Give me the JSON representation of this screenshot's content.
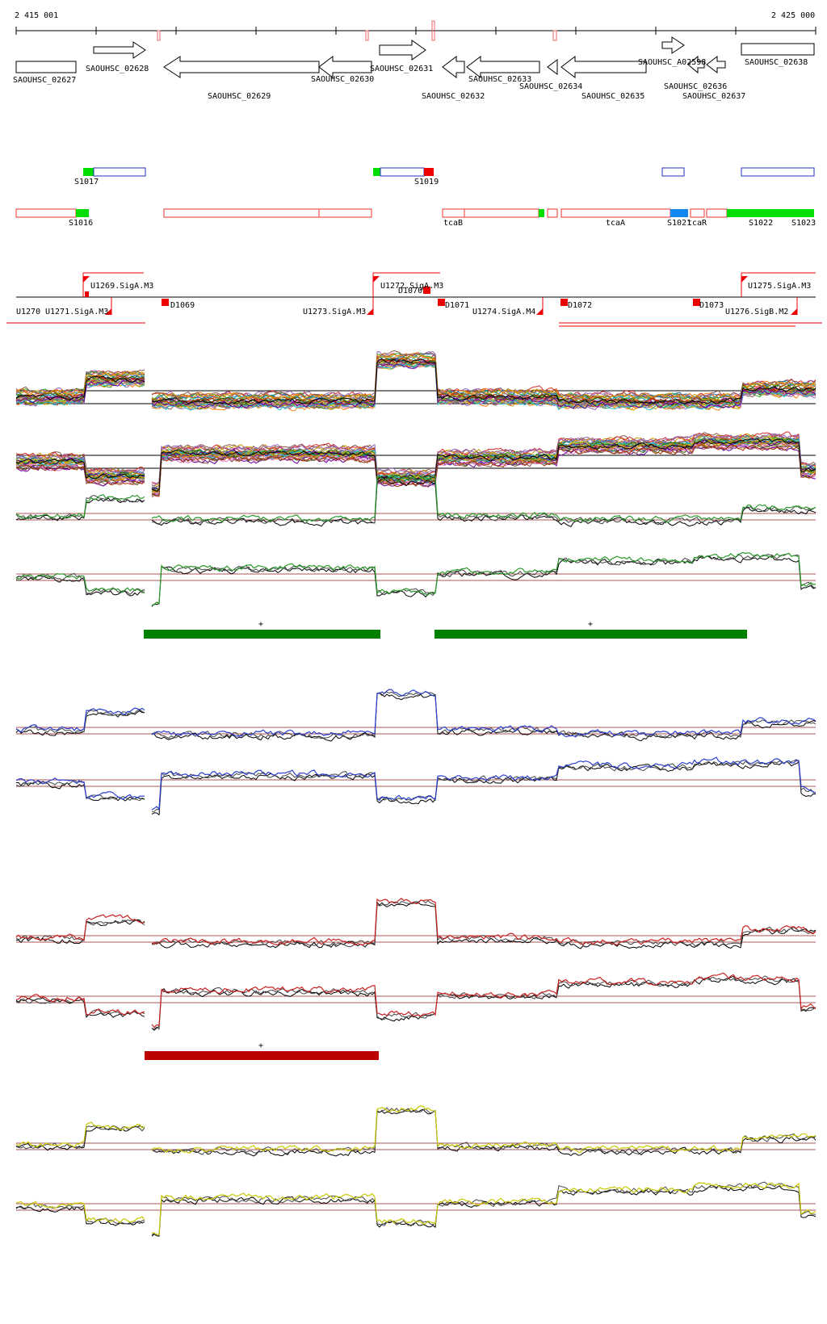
{
  "ruler": {
    "start_label": "2 415 001",
    "end_label": "2 425 000"
  },
  "genes": [
    {
      "label": "SAOUHSC_02627",
      "dir": "box"
    },
    {
      "label": "SAOUHSC_02628",
      "dir": "right"
    },
    {
      "label": "SAOUHSC_02629",
      "dir": "left"
    },
    {
      "label": "SAOUHSC_02630",
      "dir": "left"
    },
    {
      "label": "SAOUHSC_02631",
      "dir": "right"
    },
    {
      "label": "SAOUHSC_02632",
      "dir": "left"
    },
    {
      "label": "SAOUHSC_02633",
      "dir": "left"
    },
    {
      "label": "SAOUHSC_02634",
      "dir": "left"
    },
    {
      "label": "SAOUHSC_02635",
      "dir": "left"
    },
    {
      "label": "SAOUHSC_A02598",
      "dir": "right"
    },
    {
      "label": "SAOUHSC_02636",
      "dir": "left"
    },
    {
      "label": "SAOUHSC_02637",
      "dir": "left"
    },
    {
      "label": "SAOUHSC_02638",
      "dir": "box"
    }
  ],
  "segments_upper": [
    {
      "label": "S1017"
    },
    {
      "label": "S1019"
    }
  ],
  "segments_lower": [
    {
      "label": "S1016"
    },
    {
      "label": "tcaB"
    },
    {
      "label": "tcaA"
    },
    {
      "label": "S1021"
    },
    {
      "label": "tcaR"
    },
    {
      "label": "S1022"
    },
    {
      "label": "S1023"
    }
  ],
  "promoters": [
    {
      "label": "U1269.SigA.M3"
    },
    {
      "label": "U1272.SigA.M3"
    },
    {
      "label": "U1275.SigA.M3"
    },
    {
      "label": "U1270"
    },
    {
      "label": "U1271.SigA.M3"
    },
    {
      "label": "D1069"
    },
    {
      "label": "D1070"
    },
    {
      "label": "U1273.SigA.M3"
    },
    {
      "label": "D1071"
    },
    {
      "label": "U1274.SigA.M4"
    },
    {
      "label": "D1072"
    },
    {
      "label": "D1073"
    },
    {
      "label": "U1276.SigB.M2"
    }
  ],
  "bar_labels": {
    "green_1": "+",
    "green_2": "+",
    "red_1": "+"
  },
  "colors": {
    "green": "#2a9a2a",
    "blue": "#2b3fcf",
    "red": "#cc2222",
    "yellow": "#c8c800",
    "bar_green": "#008000",
    "bar_red": "#bb0000",
    "segment_green": "#00dd00",
    "segment_red": "#ee0000",
    "segment_blue": "#1188ee"
  }
}
